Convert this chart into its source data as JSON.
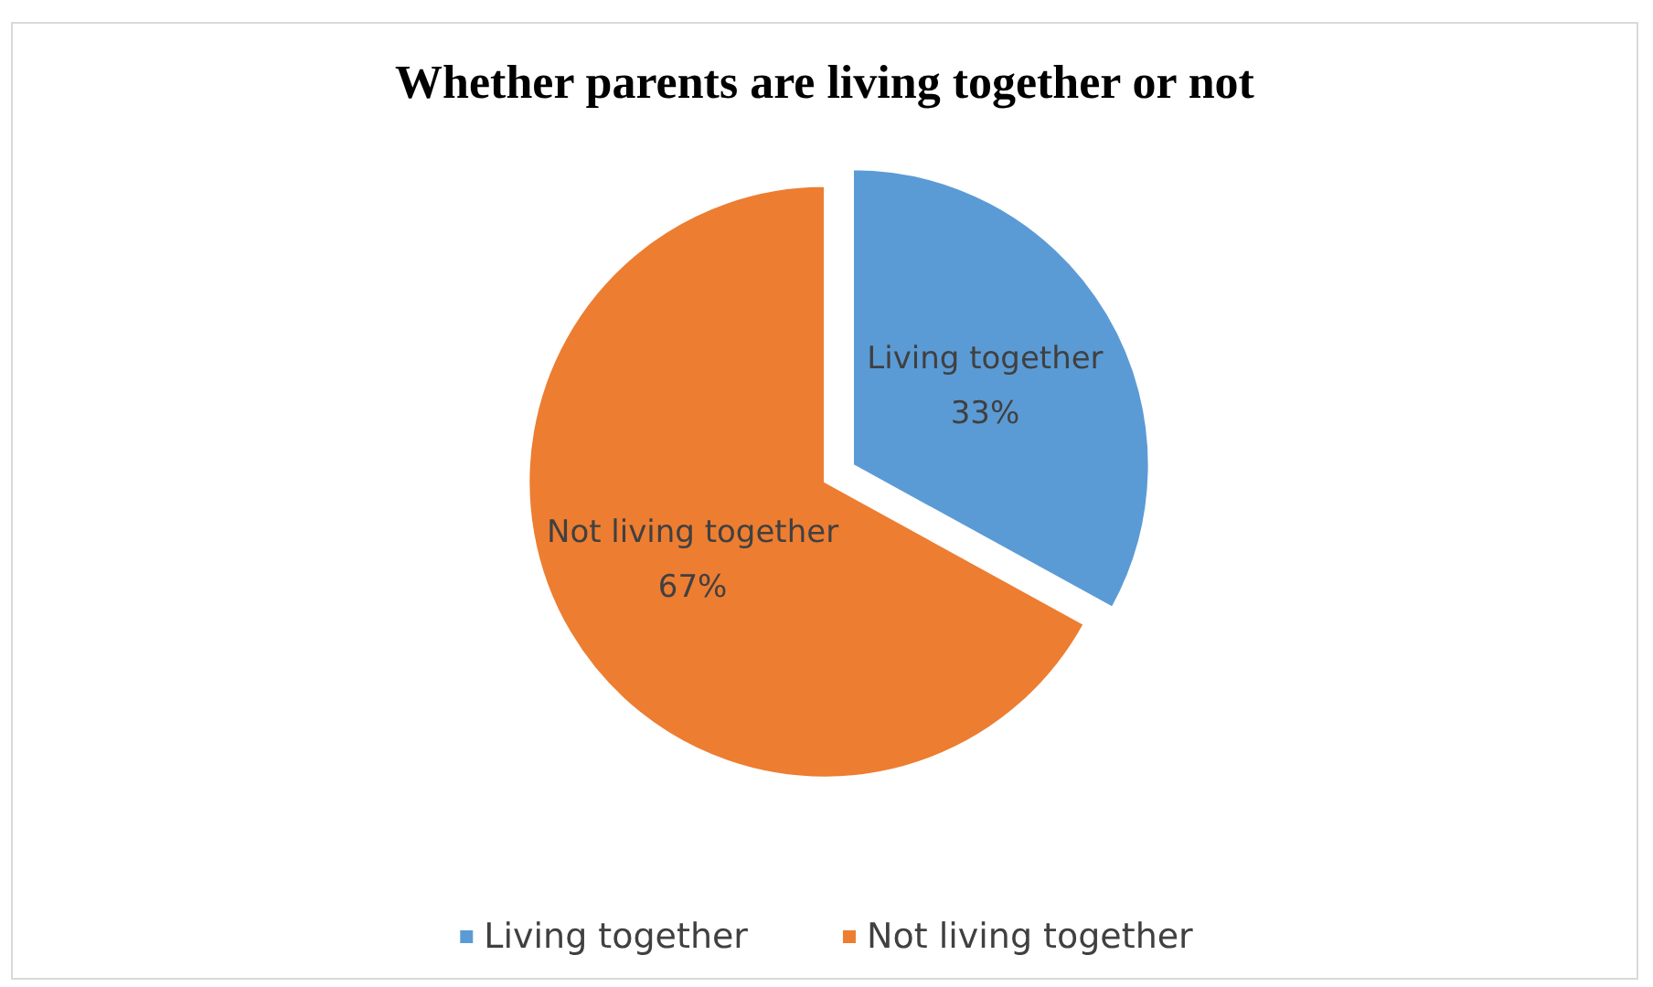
{
  "chart_data": {
    "type": "pie",
    "title": "Whether parents are living together or not",
    "categories": [
      "Living together",
      "Not living together"
    ],
    "values": [
      33,
      67
    ],
    "value_labels": [
      "33%",
      "67%"
    ],
    "colors": [
      "#5b9bd5",
      "#ed7d31"
    ],
    "legend": "bottom"
  }
}
